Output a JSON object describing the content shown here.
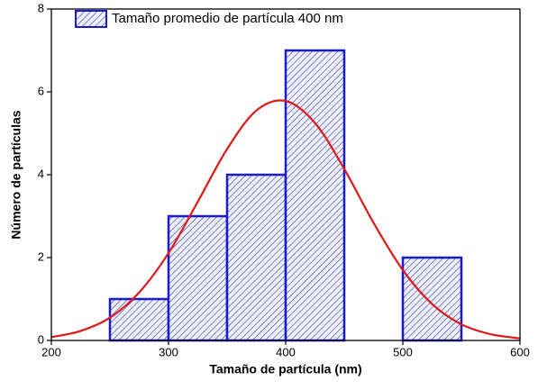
{
  "chart_data": {
    "type": "histogram",
    "xlabel": "Tamaño de partícula (nm)",
    "ylabel": "Número de partículas",
    "bins": [
      250,
      300,
      350,
      400,
      450,
      500,
      550
    ],
    "series": [
      {
        "name": "Tamaño promedio de partícula 400 nm",
        "color": "#1a1ad0",
        "values": [
          1,
          3,
          4,
          7,
          0,
          2
        ]
      }
    ],
    "curve": {
      "color": "#e01818",
      "x": [
        200,
        225,
        250,
        275,
        300,
        325,
        350,
        375,
        400,
        425,
        450,
        475,
        500,
        525,
        550,
        575,
        600
      ],
      "y": [
        0.08,
        0.23,
        0.55,
        1.16,
        2.11,
        3.35,
        4.62,
        5.55,
        5.78,
        5.25,
        4.14,
        2.84,
        1.7,
        0.88,
        0.39,
        0.15,
        0.05
      ]
    },
    "xlim": [
      200,
      600
    ],
    "xticks": [
      200,
      300,
      400,
      500,
      600
    ],
    "ylim": [
      0,
      8
    ],
    "yticks": [
      0,
      2,
      4,
      6,
      8
    ]
  }
}
